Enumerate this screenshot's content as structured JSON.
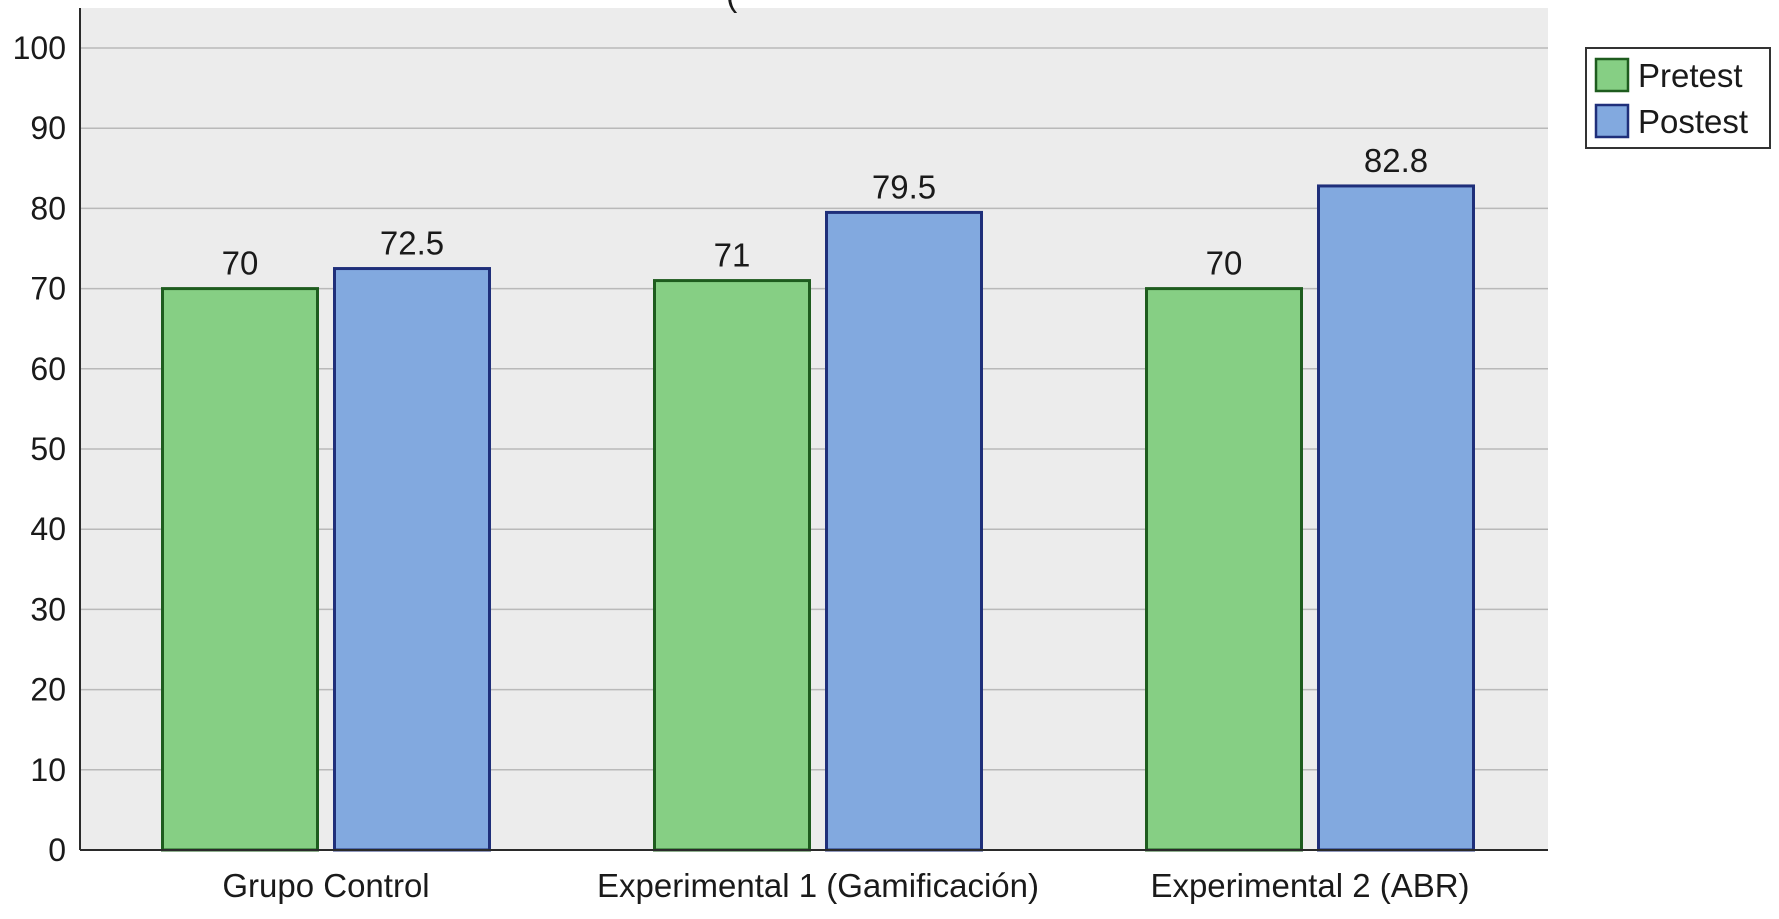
{
  "chart_data": {
    "type": "bar",
    "title": "(",
    "categories": [
      "Grupo Control",
      "Experimental 1 (Gamificación)",
      "Experimental 2 (ABR)"
    ],
    "series": [
      {
        "name": "Pretest",
        "values": [
          70,
          71,
          70
        ],
        "value_labels": [
          "70",
          "71",
          "70"
        ],
        "color": "#86cf84",
        "stroke": "#1e5c1e"
      },
      {
        "name": "Postest",
        "values": [
          72.5,
          79.5,
          82.8
        ],
        "value_labels": [
          "72.5",
          "79.5",
          "82.8"
        ],
        "color": "#82a9df",
        "stroke": "#1f2f7a"
      }
    ],
    "ylim": [
      0,
      100
    ],
    "yticks": [
      0,
      10,
      20,
      30,
      40,
      50,
      60,
      70,
      80,
      90,
      100
    ],
    "grid": true,
    "plot_background": "#ececec",
    "legend_position": "top-right",
    "xlabel": "",
    "ylabel": ""
  }
}
